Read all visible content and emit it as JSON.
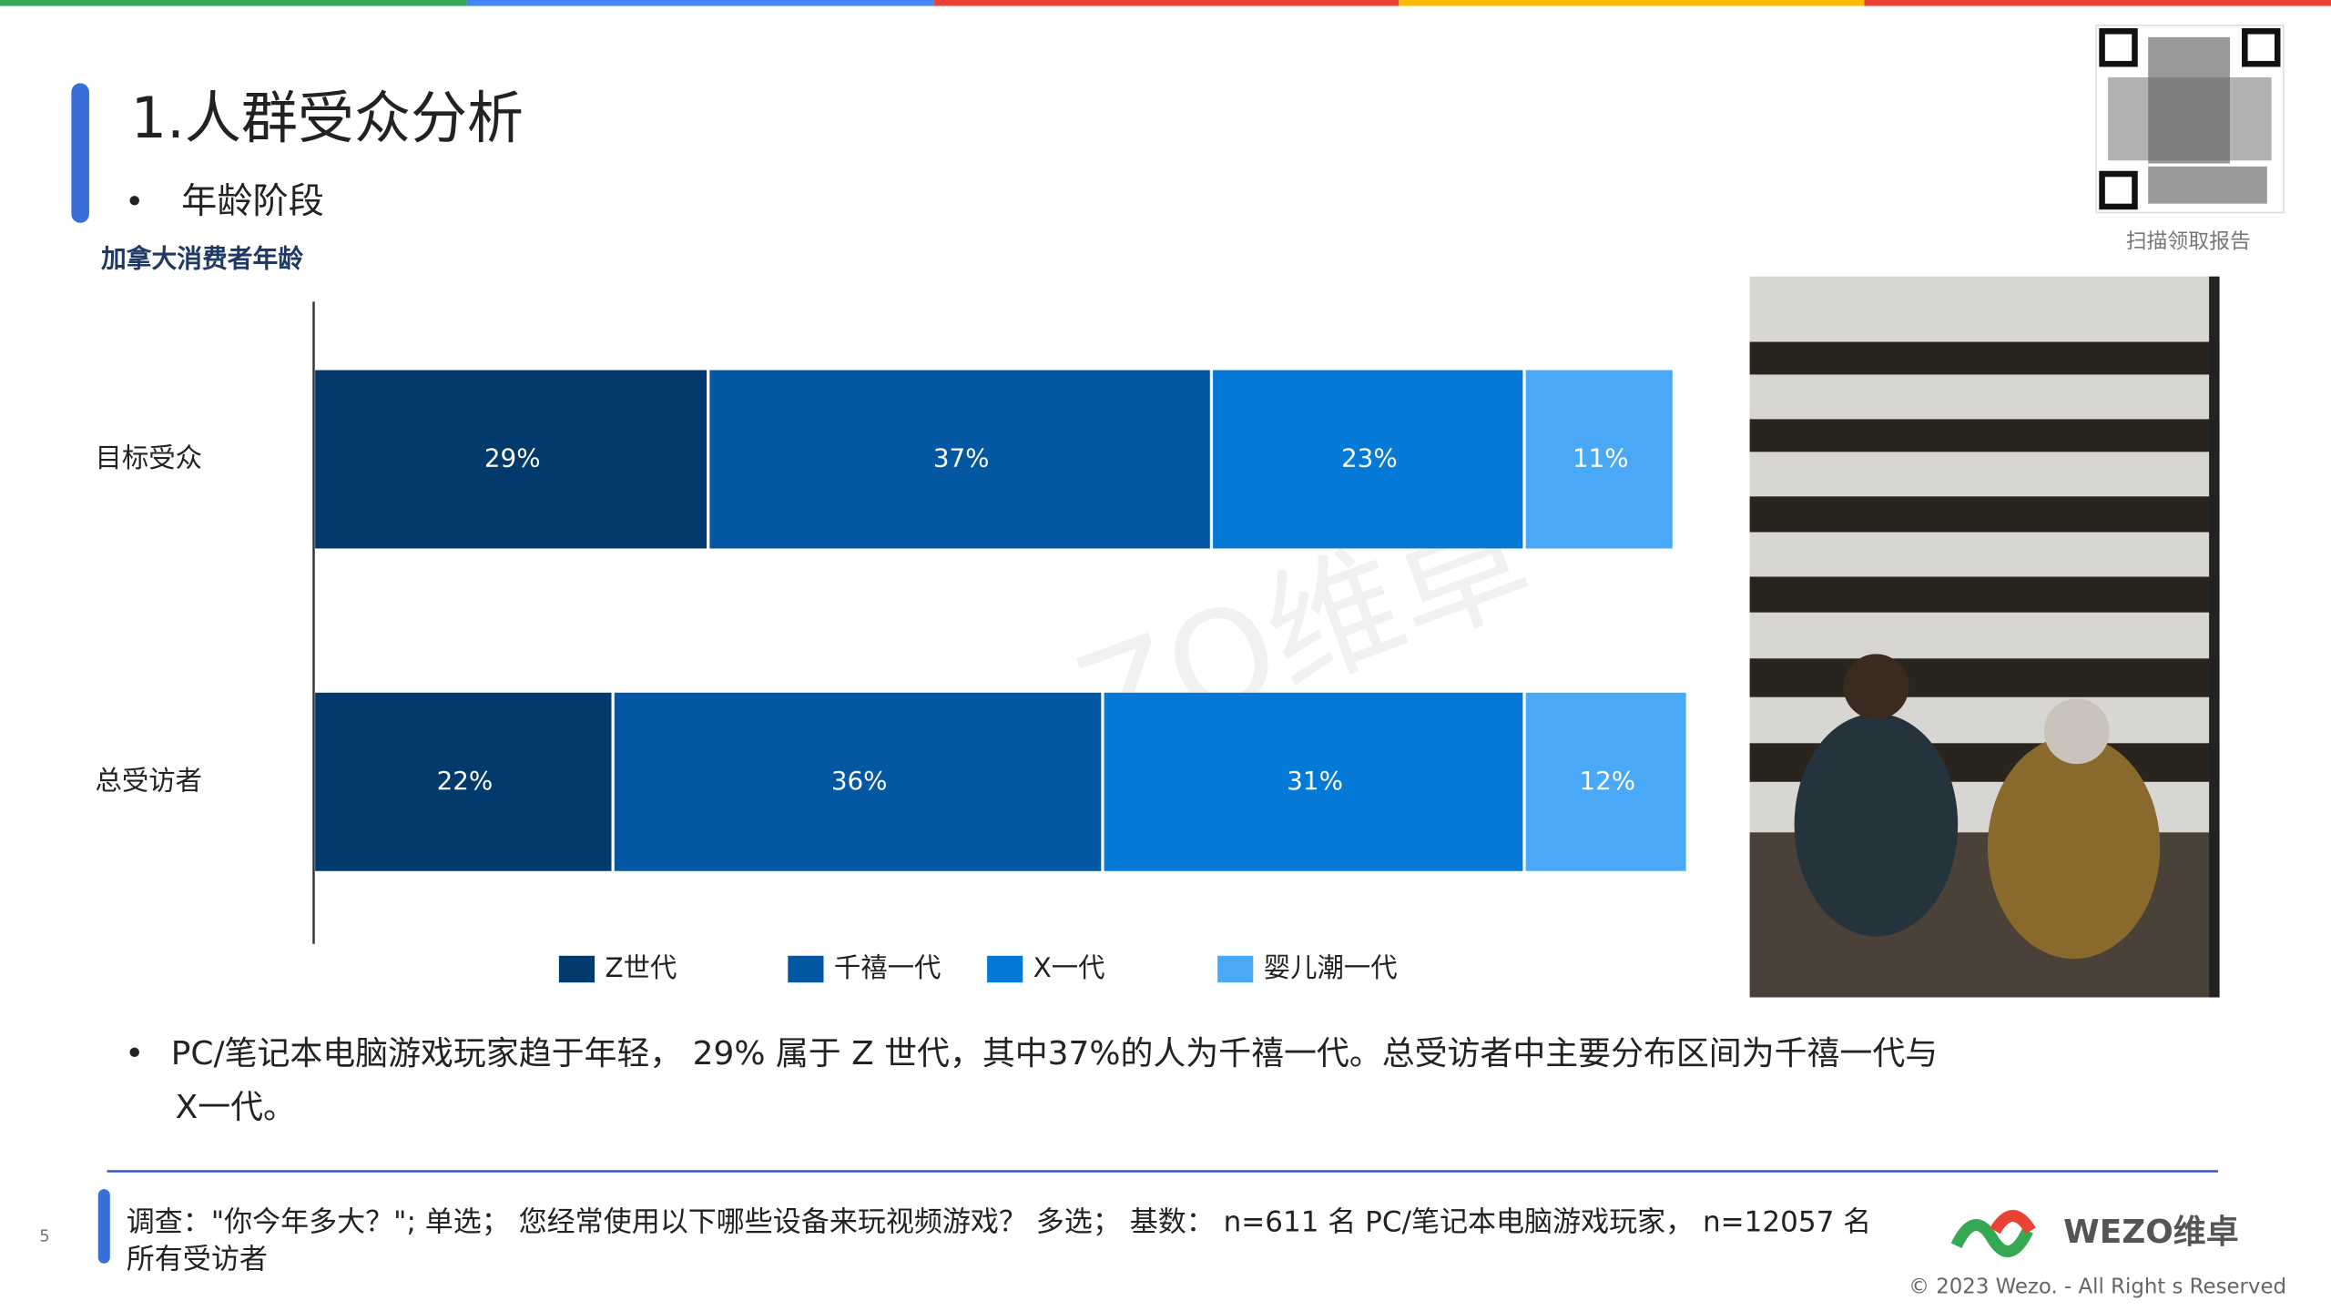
{
  "page": {
    "title": "1.人群受众分析",
    "bullet": "年龄阶段",
    "qr_caption": "扫描领取报告",
    "note": [
      "PC/笔记本电脑游戏玩家趋于年轻， 29% 属于 Z 世代，其中37%的人为千禧一代。总受访者中主要分布区间为千禧一代与",
      "X一代。"
    ],
    "footnote": [
      "调查：\"你今年多大？\"; 单选；  您经常使用以下哪些设备来玩视频游戏？ 多选；  基数： n=611 名 PC/笔记本电脑游戏玩家， n=12057 名",
      "所有受访者"
    ],
    "page_number": "5",
    "logo": "WEZO维卓",
    "copyright": "© 2023 Wezo. - All Right s Reserved",
    "watermark": "ZO维卓"
  },
  "chart_data": {
    "type": "stacked_bar_horizontal",
    "title": "加拿大消费者年龄",
    "categories": [
      "目标受众",
      "总受访者"
    ],
    "xlim": [
      0,
      100
    ],
    "series": [
      {
        "name": "Z世代",
        "color": "#023a6e",
        "values": [
          29,
          22
        ],
        "value_labels": [
          "29%",
          "22%"
        ]
      },
      {
        "name": "千禧一代",
        "color": "#0457a3",
        "values": [
          37,
          36
        ],
        "value_labels": [
          "37%",
          "36%"
        ]
      },
      {
        "name": "X一代",
        "color": "#0479d6",
        "values": [
          23,
          31
        ],
        "value_labels": [
          "23%",
          "31%"
        ]
      },
      {
        "name": "婴儿潮一代",
        "color": "#4aa9f6",
        "values": [
          11,
          12
        ],
        "value_labels": [
          "11%",
          "12%"
        ]
      }
    ]
  }
}
